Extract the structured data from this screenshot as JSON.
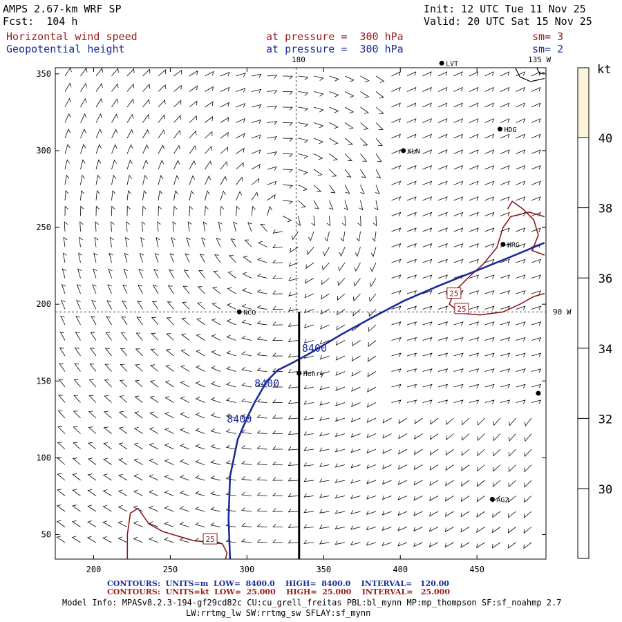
{
  "header": {
    "model": "AMPS 2.67-km WRF SP",
    "init": "Init: 12 UTC Tue 11 Nov 25",
    "fcst": "Fcst:  104 h",
    "valid": "Valid: 20 UTC Sat 15 Nov 25",
    "field1": "Horizontal wind speed",
    "field1_level": "at pressure =  300 hPa",
    "field1_sm": "sm= 3",
    "field2": "Geopotential height",
    "field2_level": "at pressure =  300 hPa",
    "field2_sm": "sm= 2"
  },
  "map_labels": {
    "lon_180": "180",
    "lon_135w": "135 W",
    "lon_90w": "90 W"
  },
  "stations": [
    {
      "name": "LVT",
      "x": 427,
      "y": 357
    },
    {
      "name": "HDG",
      "x": 465,
      "y": 314
    },
    {
      "name": "KLN",
      "x": 402,
      "y": 300
    },
    {
      "name": "HRG",
      "x": 467,
      "y": 239
    },
    {
      "name": "NCO",
      "x": 295,
      "y": 195
    },
    {
      "name": "Henry",
      "x": 334,
      "y": 155
    },
    {
      "name": "",
      "x": 490,
      "y": 142
    },
    {
      "name": "AG2",
      "x": 460,
      "y": 73
    }
  ],
  "colorbar": {
    "unit": "kt",
    "ticks": [
      "40",
      "38",
      "36",
      "34",
      "32",
      "30"
    ]
  },
  "footer": {
    "line1_label": "CONTOURS:",
    "line1_units": "UNITS=m",
    "line1_low": "LOW=  8400.0",
    "line1_high": "HIGH=  8400.0",
    "line1_interval": "INTERVAL=   120.00",
    "line2_label": "CONTOURS:",
    "line2_units": "UNITS=kt",
    "line2_low": "LOW=  25.000",
    "line2_high": "HIGH=  25.000",
    "line2_interval": "INTERVAL=   25.000",
    "model_info": "Model Info: MPASv8.2.3-194-gf29cd82c CU:cu_grell_freitas PBL:bl_mynn MP:mp_thompson SF:sf_noahmp 2.7",
    "model_info2": "LW:rrtmg_lw SW:rrtmg_sw SFLAY:sf_mynn"
  },
  "chart_data": {
    "type": "contour-map",
    "title": "Horizontal wind speed / Geopotential height at 300 hPa",
    "xlim": [
      175,
      495
    ],
    "ylim": [
      34,
      354
    ],
    "x_ticks": [
      "200",
      "250",
      "300",
      "350",
      "400",
      "450"
    ],
    "x_tick_values": [
      200,
      250,
      300,
      350,
      400,
      450
    ],
    "y_ticks": [
      "350",
      "300",
      "250",
      "200",
      "150",
      "100",
      "50"
    ],
    "y_tick_values": [
      350,
      300,
      250,
      200,
      150,
      100,
      50
    ],
    "cross_section_x": 334,
    "cross_section_y": [
      34,
      195
    ],
    "dashed_lon_x": 332,
    "dashed_lat_y": 195,
    "height_contour": {
      "value": 8400,
      "color": "#1c2b9a",
      "labels": [
        "8400",
        "8400",
        "8400"
      ],
      "label_pos": [
        [
          344,
          169
        ],
        [
          313,
          146
        ],
        [
          295,
          123
        ]
      ],
      "points": [
        [
          289,
          34
        ],
        [
          288,
          60
        ],
        [
          289,
          88
        ],
        [
          294,
          112
        ],
        [
          301,
          128
        ],
        [
          305,
          136
        ],
        [
          313,
          150
        ],
        [
          320,
          157
        ],
        [
          330,
          162
        ],
        [
          341,
          168
        ],
        [
          361,
          180
        ],
        [
          381,
          191
        ],
        [
          402,
          202
        ],
        [
          425,
          212
        ],
        [
          450,
          222
        ],
        [
          470,
          230
        ],
        [
          494,
          240
        ]
      ]
    },
    "wind_contours": {
      "value": 25,
      "color": "#8a1a1a",
      "labels": [
        "25",
        "25",
        "25"
      ],
      "label_pos": [
        [
          276,
          47
        ],
        [
          435,
          207
        ],
        [
          440,
          197
        ]
      ],
      "segments": [
        [
          [
            222,
            34
          ],
          [
            222,
            50
          ],
          [
            224,
            64
          ],
          [
            229,
            67
          ],
          [
            236,
            57
          ],
          [
            245,
            52
          ],
          [
            255,
            49
          ],
          [
            265,
            46
          ],
          [
            276,
            45
          ],
          [
            284,
            44
          ],
          [
            287,
            38
          ],
          [
            286,
            34
          ]
        ],
        [
          [
            494,
            257
          ],
          [
            484,
            260
          ],
          [
            472,
            257
          ],
          [
            467,
            250
          ],
          [
            463,
            237
          ],
          [
            454,
            226
          ],
          [
            445,
            218
          ],
          [
            435,
            208
          ],
          [
            432,
            200
          ],
          [
            440,
            194
          ],
          [
            452,
            193
          ],
          [
            467,
            195
          ],
          [
            478,
            200
          ],
          [
            487,
            205
          ],
          [
            494,
            207
          ]
        ],
        [
          [
            470,
            262
          ],
          [
            473,
            267
          ],
          [
            480,
            262
          ],
          [
            487,
            255
          ],
          [
            490,
            245
          ],
          [
            486,
            235
          ],
          [
            494,
            232
          ]
        ]
      ]
    },
    "coast_segments": [
      [
        [
          475,
          354
        ],
        [
          478,
          348
        ],
        [
          485,
          345
        ],
        [
          494,
          347
        ]
      ],
      [
        [
          489,
          354
        ],
        [
          491,
          350
        ],
        [
          494,
          351
        ]
      ]
    ],
    "wind_barbs": {
      "units": "kt",
      "note": "300 hPa wind barbs on a regular grid"
    }
  }
}
